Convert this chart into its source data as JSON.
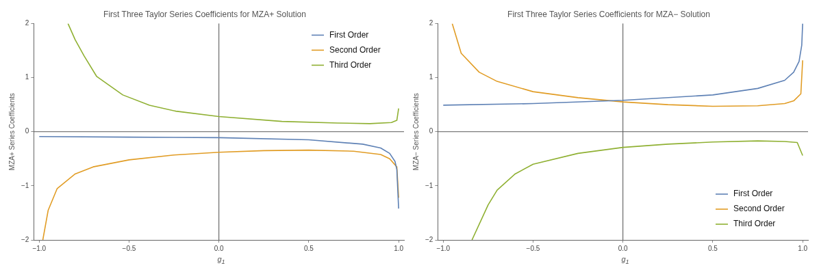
{
  "chart_data": [
    {
      "type": "line",
      "title": "First Three Taylor Series Coefficients for MZA+ Solution",
      "xlabel": "g$_{1}$",
      "ylabel": "MZA+ Series Coefficients",
      "xlim": [
        -1.03,
        1.03
      ],
      "ylim": [
        -2,
        2
      ],
      "xticks": [
        {
          "value": -1,
          "label": "−1.0"
        },
        {
          "value": -0.5,
          "label": "−0.5"
        },
        {
          "value": 0,
          "label": "0.0"
        },
        {
          "value": 0.5,
          "label": "0.5"
        },
        {
          "value": 1,
          "label": "1.0"
        }
      ],
      "yticks": [
        -2,
        -1,
        0,
        1,
        2
      ],
      "grid": false,
      "legend": "top right",
      "line_style": "solid",
      "marker": "none",
      "ref_lines": [
        {
          "axis": "x",
          "value": 0,
          "color": "#4d4d4d"
        },
        {
          "axis": "y",
          "value": 0,
          "color": "#5a5a5a"
        }
      ],
      "series": [
        {
          "name": "First Order",
          "color": "#5e81b5",
          "x": [
            -1,
            -0.5,
            0,
            0.5,
            0.8,
            0.9,
            0.95,
            0.98,
            0.99,
            1.0
          ],
          "values": [
            -0.09,
            -0.1,
            -0.11,
            -0.15,
            -0.23,
            -0.3,
            -0.4,
            -0.55,
            -0.7,
            -1.42
          ]
        },
        {
          "name": "Second Order",
          "color": "#e19c24",
          "x": [
            -0.98,
            -0.95,
            -0.9,
            -0.8,
            -0.7,
            -0.5,
            -0.25,
            0,
            0.25,
            0.5,
            0.75,
            0.9,
            0.95,
            0.99,
            1.0
          ],
          "values": [
            -2,
            -1.45,
            -1.05,
            -0.78,
            -0.65,
            -0.52,
            -0.43,
            -0.38,
            -0.35,
            -0.34,
            -0.36,
            -0.42,
            -0.5,
            -0.65,
            -1.22
          ]
        },
        {
          "name": "Third Order",
          "color": "#8fb032",
          "x": [
            -0.84,
            -0.8,
            -0.75,
            -0.68,
            -0.535,
            -0.386,
            -0.24,
            0,
            0.35,
            0.66,
            0.84,
            0.96,
            0.99,
            1.0
          ],
          "values": [
            2,
            1.7,
            1.4,
            1.02,
            0.68,
            0.49,
            0.38,
            0.28,
            0.19,
            0.16,
            0.15,
            0.17,
            0.21,
            0.43
          ]
        }
      ]
    },
    {
      "type": "line",
      "title": "First Three Taylor Series Coefficients for MZA− Solution",
      "xlabel": "g$_{1}$",
      "ylabel": "MZA− Series Coefficients",
      "xlim": [
        -1.03,
        1.03
      ],
      "ylim": [
        -2,
        2
      ],
      "xticks": [
        {
          "value": -1,
          "label": "−1.0"
        },
        {
          "value": -0.5,
          "label": "−0.5"
        },
        {
          "value": 0,
          "label": "0.0"
        },
        {
          "value": 0.5,
          "label": "0.5"
        },
        {
          "value": 1,
          "label": "1.0"
        }
      ],
      "yticks": [
        -2,
        -1,
        0,
        1,
        2
      ],
      "grid": false,
      "legend": "bottom right",
      "line_style": "solid",
      "marker": "none",
      "ref_lines": [
        {
          "axis": "x",
          "value": 0,
          "color": "#4d4d4d"
        },
        {
          "axis": "y",
          "value": 0,
          "color": "#5a5a5a"
        }
      ],
      "series": [
        {
          "name": "First Order",
          "color": "#5e81b5",
          "x": [
            -1,
            -0.5,
            0,
            0.5,
            0.75,
            0.9,
            0.95,
            0.98,
            0.995,
            1.0
          ],
          "values": [
            0.49,
            0.52,
            0.58,
            0.68,
            0.8,
            0.95,
            1.1,
            1.3,
            1.6,
            2.0
          ]
        },
        {
          "name": "Second Order",
          "color": "#e19c24",
          "x": [
            -0.95,
            -0.9,
            -0.8,
            -0.7,
            -0.5,
            -0.25,
            0,
            0.25,
            0.5,
            0.75,
            0.9,
            0.95,
            0.99,
            1.0
          ],
          "values": [
            2,
            1.45,
            1.1,
            0.93,
            0.74,
            0.63,
            0.55,
            0.5,
            0.47,
            0.48,
            0.52,
            0.57,
            0.7,
            1.32
          ]
        },
        {
          "name": "Third Order",
          "color": "#8fb032",
          "x": [
            -0.84,
            -0.75,
            -0.7,
            -0.6,
            -0.5,
            -0.25,
            0,
            0.25,
            0.5,
            0.75,
            0.9,
            0.97,
            1.0
          ],
          "values": [
            -2,
            -1.35,
            -1.08,
            -0.78,
            -0.6,
            -0.4,
            -0.29,
            -0.23,
            -0.19,
            -0.17,
            -0.18,
            -0.2,
            -0.44
          ]
        }
      ]
    }
  ]
}
